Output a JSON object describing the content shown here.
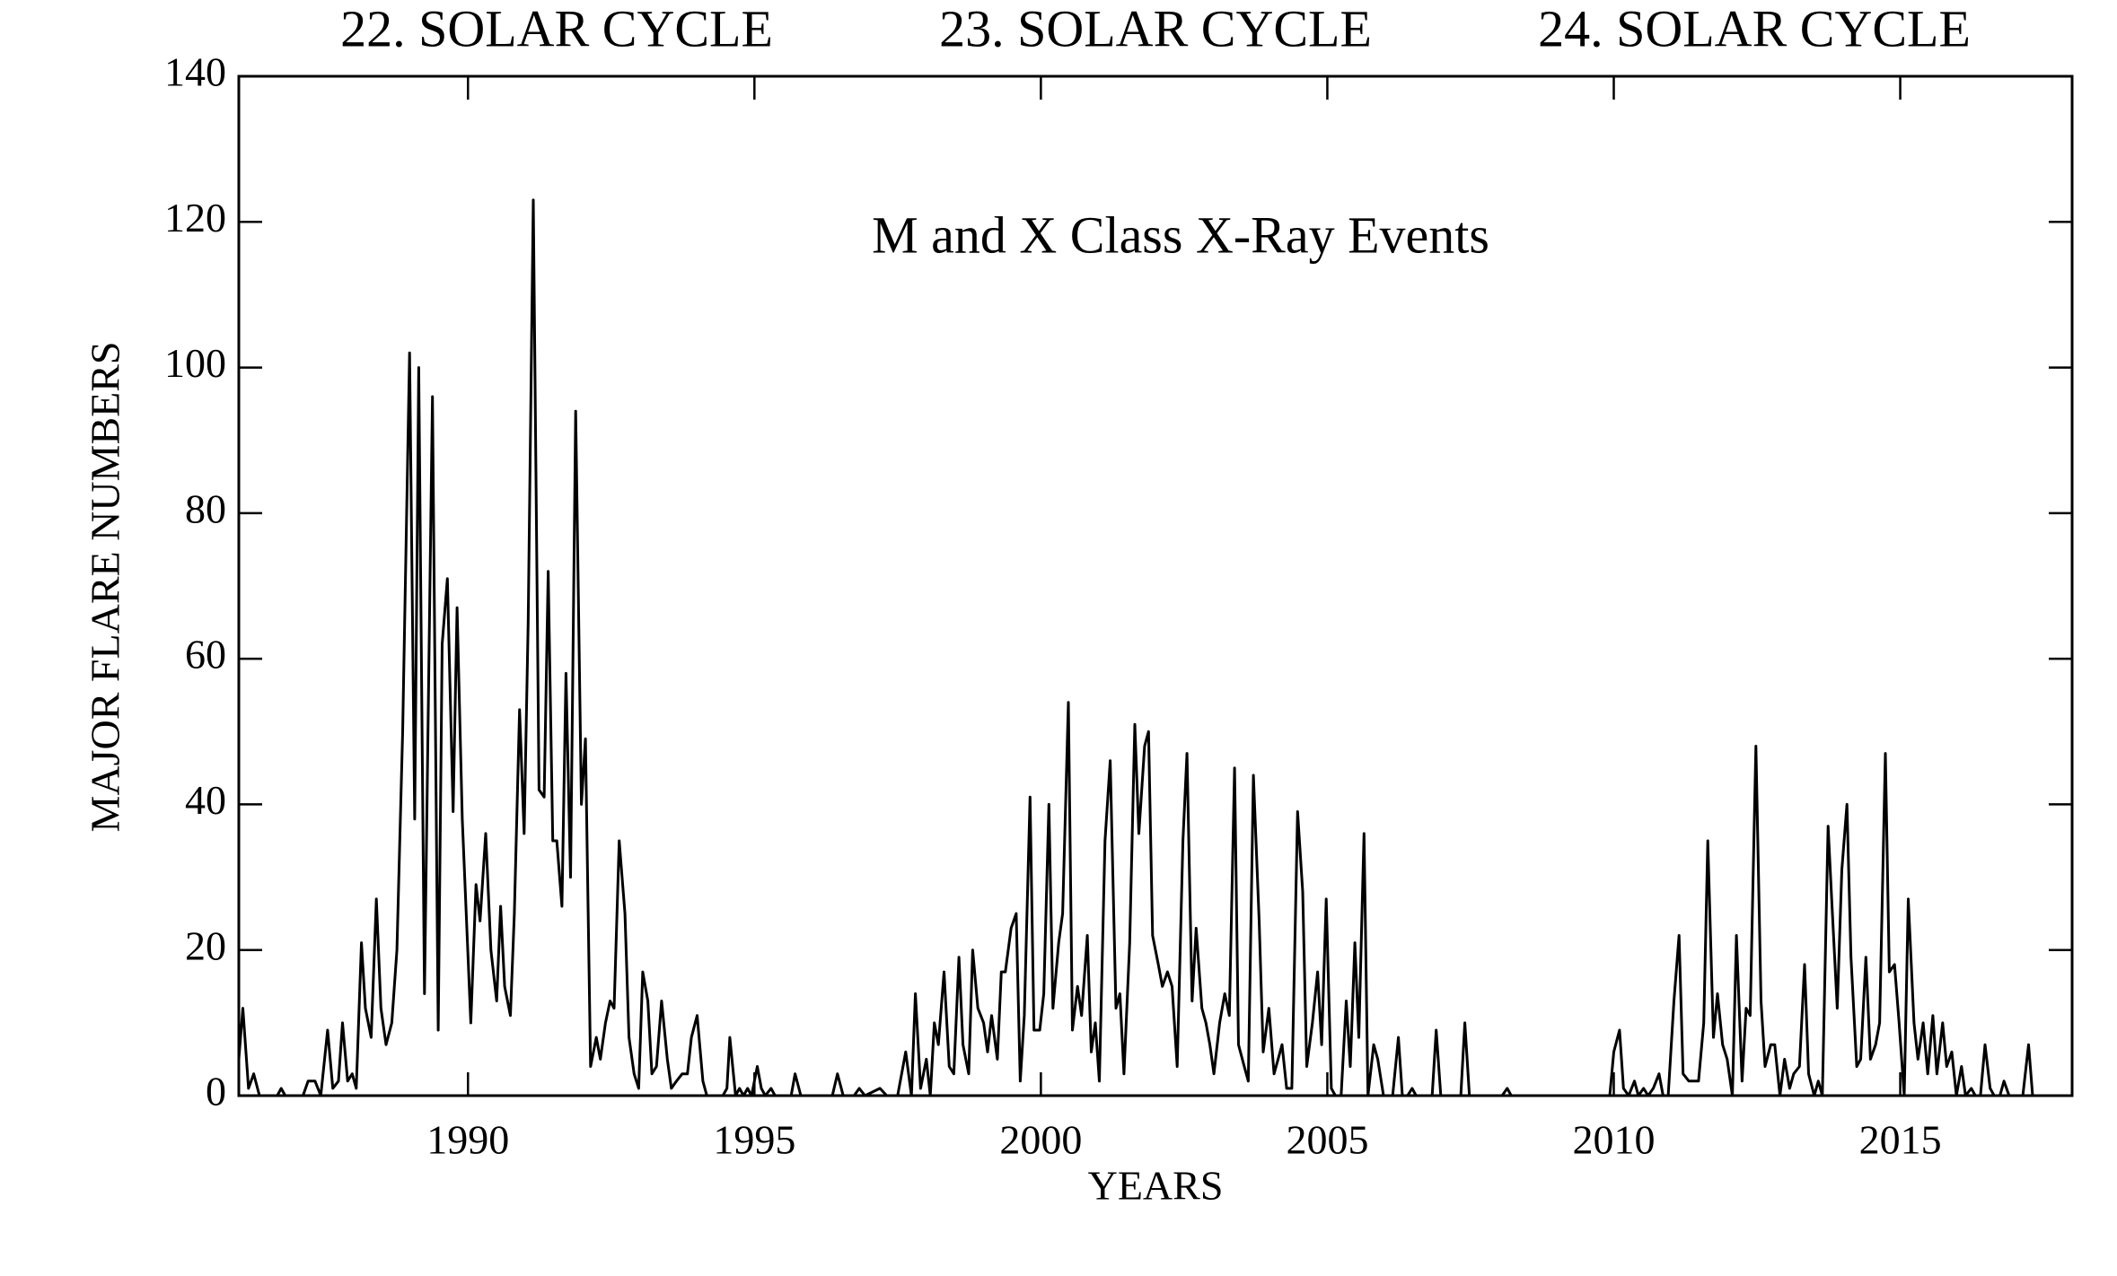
{
  "chart_data": {
    "type": "line",
    "cycle_labels": [
      "22. SOLAR CYCLE",
      "23. SOLAR CYCLE",
      "24. SOLAR CYCLE"
    ],
    "annotation": "M and X Class X-Ray Events",
    "x_label": "YEARS",
    "y_label": "MAJOR FLARE NUMBERS",
    "color": "#000000",
    "xlim": [
      1986,
      2018
    ],
    "xticks": [
      1990,
      1995,
      2000,
      2005,
      2010,
      2015
    ],
    "ylim": [
      0,
      140
    ],
    "yticks": [
      0,
      20,
      40,
      60,
      80,
      100,
      120,
      140
    ],
    "x": [
      1986.0,
      1986.07,
      1986.17,
      1986.26,
      1986.36,
      1986.67,
      1986.74,
      1986.81,
      1987.12,
      1987.21,
      1987.33,
      1987.43,
      1987.55,
      1987.64,
      1987.74,
      1987.81,
      1987.9,
      1987.98,
      1988.05,
      1988.14,
      1988.21,
      1988.31,
      1988.4,
      1988.48,
      1988.57,
      1988.67,
      1988.76,
      1988.86,
      1988.98,
      1989.07,
      1989.14,
      1989.24,
      1989.38,
      1989.48,
      1989.55,
      1989.64,
      1989.74,
      1989.81,
      1989.9,
      1990.05,
      1990.14,
      1990.21,
      1990.31,
      1990.4,
      1990.5,
      1990.57,
      1990.64,
      1990.74,
      1990.81,
      1990.9,
      1990.98,
      1991.05,
      1991.14,
      1991.24,
      1991.33,
      1991.4,
      1991.48,
      1991.55,
      1991.64,
      1991.71,
      1991.79,
      1991.88,
      1991.98,
      1992.05,
      1992.14,
      1992.24,
      1992.31,
      1992.4,
      1992.48,
      1992.55,
      1992.64,
      1992.74,
      1992.81,
      1992.9,
      1992.98,
      1993.05,
      1993.14,
      1993.21,
      1993.29,
      1993.38,
      1993.48,
      1993.55,
      1993.64,
      1993.74,
      1993.83,
      1993.9,
      1994.0,
      1994.1,
      1994.17,
      1994.45,
      1994.52,
      1994.57,
      1994.67,
      1994.74,
      1994.81,
      1994.88,
      1994.95,
      1995.05,
      1995.12,
      1995.19,
      1995.29,
      1995.36,
      1995.64,
      1995.71,
      1995.81,
      1996.36,
      1996.45,
      1996.55,
      1996.74,
      1996.83,
      1996.93,
      1997.19,
      1997.31,
      1997.5,
      1997.64,
      1997.74,
      1997.81,
      1997.9,
      1998.0,
      1998.07,
      1998.14,
      1998.21,
      1998.31,
      1998.4,
      1998.48,
      1998.57,
      1998.64,
      1998.74,
      1998.81,
      1998.9,
      1999.0,
      1999.07,
      1999.14,
      1999.24,
      1999.31,
      1999.38,
      1999.48,
      1999.57,
      1999.64,
      1999.71,
      1999.81,
      1999.88,
      1999.98,
      2000.05,
      2000.14,
      2000.21,
      2000.31,
      2000.38,
      2000.48,
      2000.55,
      2000.64,
      2000.71,
      2000.81,
      2000.88,
      2000.95,
      2001.02,
      2001.12,
      2001.21,
      2001.31,
      2001.38,
      2001.45,
      2001.55,
      2001.64,
      2001.71,
      2001.81,
      2001.88,
      2001.95,
      2002.05,
      2002.12,
      2002.21,
      2002.29,
      2002.38,
      2002.48,
      2002.55,
      2002.64,
      2002.71,
      2002.81,
      2002.88,
      2002.95,
      2003.02,
      2003.12,
      2003.21,
      2003.29,
      2003.38,
      2003.45,
      2003.55,
      2003.62,
      2003.71,
      2003.81,
      2003.88,
      2003.98,
      2004.07,
      2004.14,
      2004.21,
      2004.29,
      2004.38,
      2004.48,
      2004.57,
      2004.64,
      2004.74,
      2004.83,
      2004.9,
      2004.98,
      2005.07,
      2005.14,
      2005.24,
      2005.33,
      2005.4,
      2005.48,
      2005.55,
      2005.64,
      2005.71,
      2005.81,
      2005.88,
      2005.98,
      2006.14,
      2006.24,
      2006.31,
      2006.4,
      2006.48,
      2006.55,
      2006.83,
      2006.9,
      2006.98,
      2007.33,
      2007.4,
      2007.48,
      2008.05,
      2008.14,
      2008.21,
      2009.93,
      2010.0,
      2010.1,
      2010.17,
      2010.26,
      2010.36,
      2010.43,
      2010.52,
      2010.6,
      2010.69,
      2010.79,
      2010.86,
      2010.95,
      2011.05,
      2011.14,
      2011.21,
      2011.31,
      2011.4,
      2011.48,
      2011.57,
      2011.64,
      2011.74,
      2011.81,
      2011.9,
      2011.98,
      2012.07,
      2012.14,
      2012.24,
      2012.31,
      2012.38,
      2012.48,
      2012.57,
      2012.64,
      2012.74,
      2012.81,
      2012.9,
      2012.98,
      2013.07,
      2013.14,
      2013.24,
      2013.33,
      2013.4,
      2013.5,
      2013.57,
      2013.64,
      2013.74,
      2013.81,
      2013.9,
      2013.98,
      2014.07,
      2014.14,
      2014.24,
      2014.31,
      2014.4,
      2014.48,
      2014.57,
      2014.64,
      2014.74,
      2014.81,
      2014.9,
      2014.98,
      2015.07,
      2015.14,
      2015.24,
      2015.31,
      2015.4,
      2015.48,
      2015.57,
      2015.64,
      2015.74,
      2015.81,
      2015.9,
      2015.98,
      2016.07,
      2016.14,
      2016.24,
      2016.31,
      2016.4,
      2016.48,
      2016.57,
      2016.64,
      2016.74,
      2016.81,
      2016.9,
      2017.14,
      2017.24,
      2017.31
    ],
    "values": [
      5,
      12,
      1,
      3,
      0,
      0,
      1,
      0,
      0,
      2,
      2,
      0,
      9,
      1,
      2,
      10,
      2,
      3,
      1,
      21,
      12,
      8,
      27,
      12,
      7,
      10,
      20,
      50,
      102,
      38,
      100,
      14,
      96,
      9,
      62,
      71,
      39,
      67,
      38,
      10,
      29,
      24,
      36,
      20,
      13,
      26,
      15,
      11,
      25,
      53,
      36,
      65,
      123,
      42,
      41,
      72,
      35,
      35,
      26,
      58,
      30,
      94,
      40,
      49,
      4,
      8,
      5,
      10,
      13,
      12,
      35,
      25,
      8,
      3,
      1,
      17,
      13,
      3,
      4,
      13,
      5,
      1,
      2,
      3,
      3,
      8,
      11,
      2,
      0,
      0,
      1,
      8,
      0,
      1,
      0,
      1,
      0,
      4,
      1,
      0,
      1,
      0,
      0,
      3,
      0,
      0,
      3,
      0,
      0,
      1,
      0,
      1,
      0,
      0,
      6,
      0,
      14,
      1,
      5,
      0,
      10,
      7,
      17,
      4,
      3,
      19,
      7,
      3,
      20,
      12,
      10,
      6,
      11,
      5,
      17,
      17,
      23,
      25,
      2,
      11,
      41,
      9,
      9,
      14,
      40,
      12,
      21,
      25,
      54,
      9,
      15,
      11,
      22,
      6,
      10,
      2,
      35,
      46,
      12,
      14,
      3,
      21,
      51,
      36,
      48,
      50,
      22,
      18,
      15,
      17,
      15,
      4,
      35,
      47,
      13,
      23,
      12,
      10,
      7,
      3,
      10,
      14,
      11,
      45,
      7,
      4,
      2,
      44,
      24,
      6,
      12,
      3,
      5,
      7,
      1,
      1,
      39,
      28,
      4,
      10,
      17,
      7,
      27,
      1,
      0,
      0,
      13,
      4,
      21,
      8,
      36,
      0,
      7,
      5,
      0,
      0,
      8,
      0,
      0,
      1,
      0,
      0,
      9,
      0,
      0,
      10,
      0,
      0,
      1,
      0,
      0,
      6,
      9,
      1,
      0,
      2,
      0,
      1,
      0,
      1,
      3,
      0,
      0,
      13,
      22,
      3,
      2,
      2,
      2,
      10,
      35,
      8,
      14,
      7,
      5,
      0,
      22,
      2,
      12,
      11,
      48,
      13,
      4,
      7,
      7,
      0,
      5,
      1,
      3,
      4,
      18,
      3,
      0,
      2,
      0,
      37,
      26,
      12,
      31,
      40,
      19,
      4,
      5,
      19,
      5,
      7,
      10,
      47,
      17,
      18,
      10,
      0,
      27,
      10,
      5,
      10,
      3,
      11,
      3,
      10,
      4,
      6,
      0,
      4,
      0,
      1,
      0,
      0,
      7,
      1,
      0,
      0,
      2,
      0,
      0,
      7,
      0
    ]
  }
}
